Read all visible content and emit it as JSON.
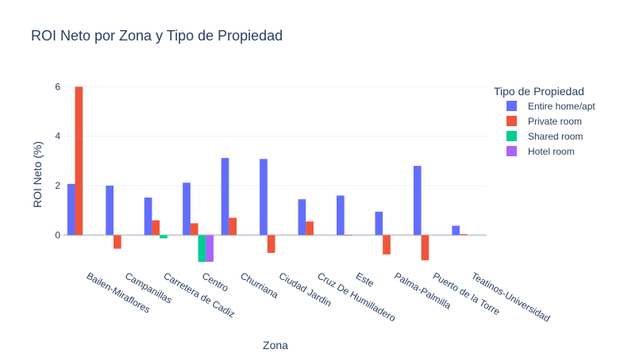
{
  "chart_data": {
    "type": "bar",
    "title": "ROI Neto por Zona y Tipo de Propiedad",
    "xlabel": "Zona",
    "ylabel": "ROI Neto (%)",
    "ylim": [
      -1.4,
      6.3
    ],
    "yticks": [
      0,
      2,
      4,
      6
    ],
    "grid": true,
    "legend_title": "Tipo de Propiedad",
    "legend_position": "top-right",
    "categories": [
      "Bailen-Miraflores",
      "Campanillas",
      "Carretera de Cadiz",
      "Centro",
      "Churriana",
      "Ciudad Jardin",
      "Cruz De Humilladero",
      "Este",
      "Palma-Palmilla",
      "Puerto de la Torre",
      "Teatinos-Universidad"
    ],
    "series": [
      {
        "name": "Entire home/apt",
        "color": "#636efa",
        "values": [
          2.07,
          2.0,
          1.52,
          2.12,
          3.12,
          3.08,
          1.45,
          1.6,
          0.95,
          2.8,
          0.38
        ]
      },
      {
        "name": "Private room",
        "color": "#ef553b",
        "values": [
          6.0,
          -0.55,
          0.6,
          0.48,
          0.7,
          -0.72,
          0.55,
          -0.02,
          -0.78,
          -1.02,
          0.04
        ]
      },
      {
        "name": "Shared room",
        "color": "#00cc96",
        "values": [
          null,
          null,
          -0.13,
          -1.08,
          null,
          null,
          null,
          null,
          null,
          null,
          null
        ]
      },
      {
        "name": "Hotel room",
        "color": "#ab63fa",
        "values": [
          null,
          null,
          null,
          -1.08,
          null,
          null,
          null,
          null,
          null,
          null,
          null
        ]
      }
    ]
  }
}
